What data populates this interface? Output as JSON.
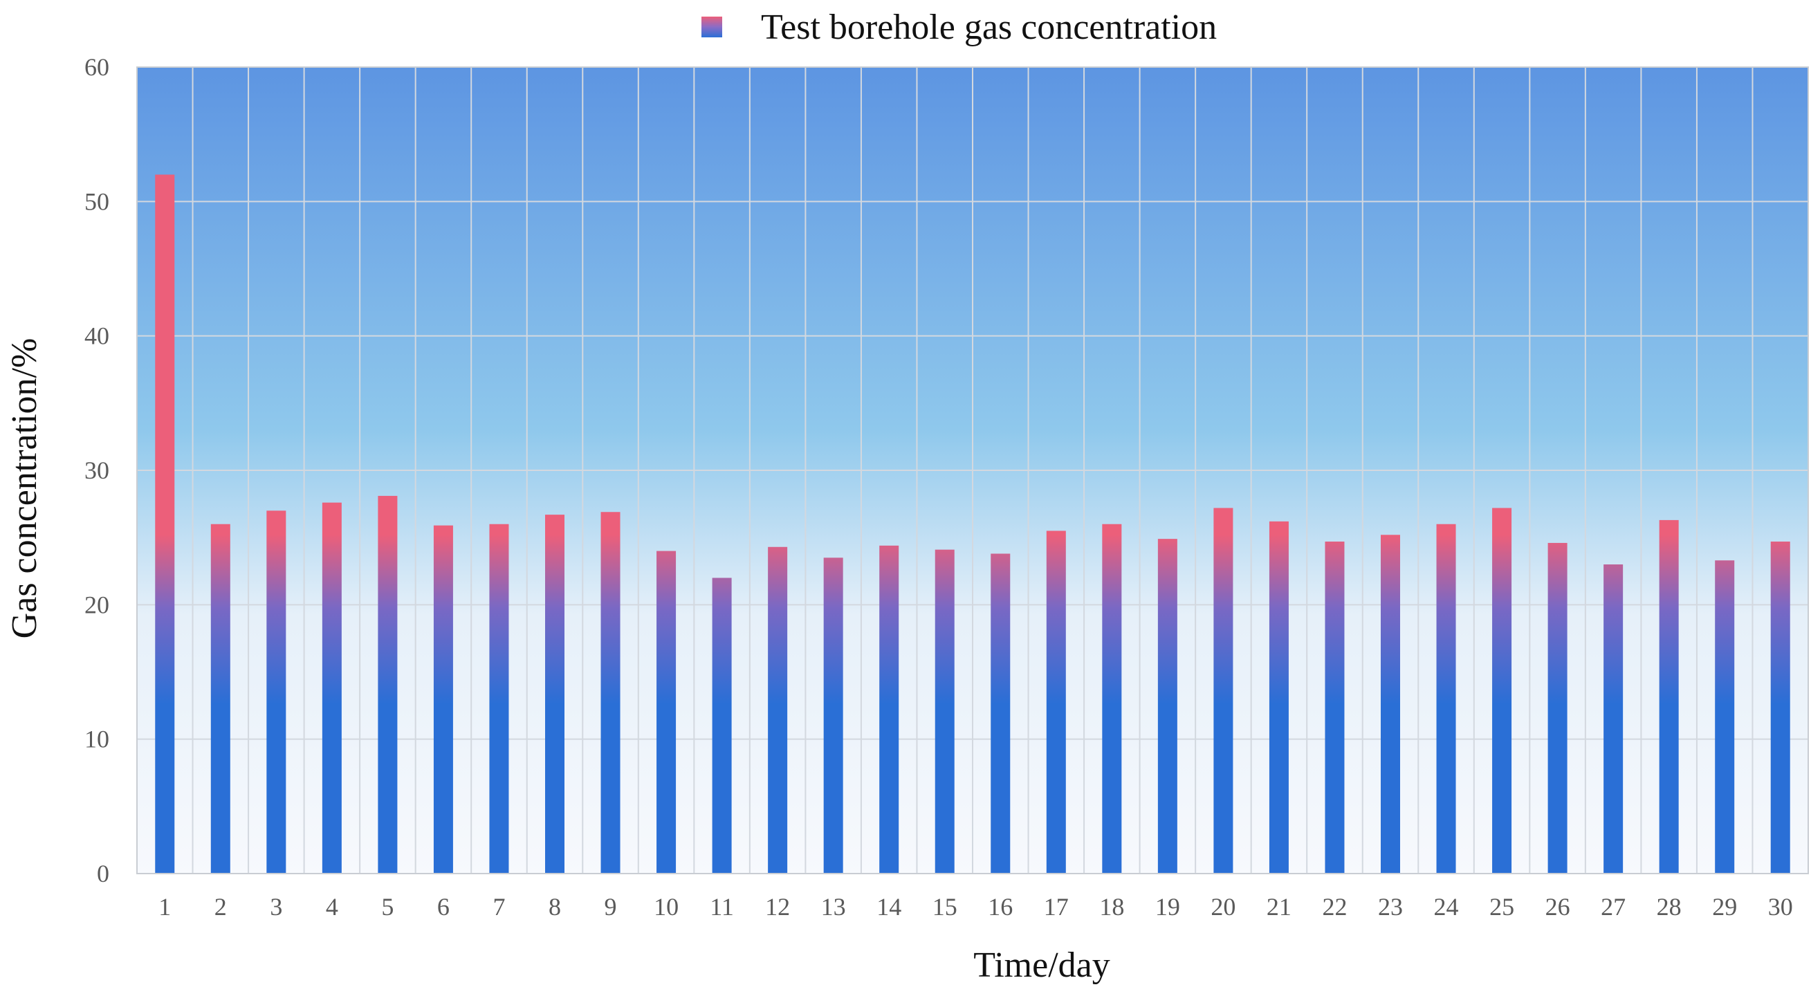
{
  "chart_data": {
    "type": "bar",
    "title": "",
    "xlabel": "Time/day",
    "ylabel": "Gas concentration/%",
    "ylim": [
      0,
      60
    ],
    "yticks": [
      0,
      10,
      20,
      30,
      40,
      50,
      60
    ],
    "grid": true,
    "legend_position": "top-center",
    "categories": [
      "1",
      "2",
      "3",
      "4",
      "5",
      "6",
      "7",
      "8",
      "9",
      "10",
      "11",
      "12",
      "13",
      "14",
      "15",
      "16",
      "17",
      "18",
      "19",
      "20",
      "21",
      "22",
      "23",
      "24",
      "25",
      "26",
      "27",
      "28",
      "29",
      "30"
    ],
    "series": [
      {
        "name": "Test borehole gas concentration",
        "values": [
          52,
          26,
          27,
          27.6,
          28.1,
          25.9,
          26,
          26.7,
          26.9,
          24,
          22,
          24.3,
          23.5,
          24.4,
          24.1,
          23.8,
          25.5,
          26,
          24.9,
          27.2,
          26.2,
          24.7,
          25.2,
          26,
          27.2,
          24.6,
          23,
          26.3,
          23.3,
          24.7
        ]
      }
    ],
    "colors": {
      "bar_bottom": "#2a6fd6",
      "bar_top": "#ec5f7a",
      "background_top": "#5d95e2",
      "background_mid": "#8fc8ec",
      "background_bottom": "#f7f9fd",
      "grid": "#d3d8df"
    }
  }
}
